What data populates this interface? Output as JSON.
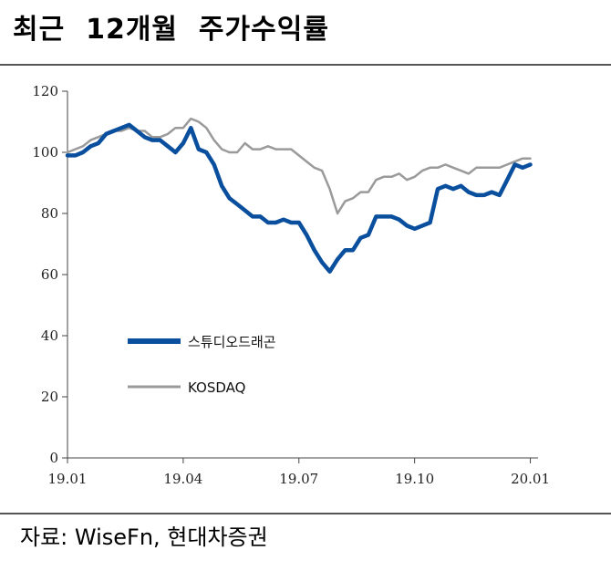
{
  "header": {
    "title": "최근  12개월  주가수익률"
  },
  "footer": {
    "source": "자료: WiseFn, 현대차증권"
  },
  "chart_data": {
    "type": "line",
    "title": "최근  12개월  주가수익률",
    "xlabel": "",
    "ylabel": "",
    "ylim": [
      0,
      120
    ],
    "y_ticks": [
      "0",
      "20",
      "40",
      "60",
      "80",
      "100",
      "120"
    ],
    "x_tick_labels": [
      "19.01",
      "19.04",
      "19.07",
      "19.10",
      "20.01"
    ],
    "x_range_months": [
      0,
      12.2
    ],
    "grid": false,
    "legend_position": "middle-left",
    "series": [
      {
        "name": "스튜디오드래곤",
        "color": "#0a4f9e",
        "x": [
          0,
          0.2,
          0.4,
          0.6,
          0.8,
          1.0,
          1.2,
          1.4,
          1.6,
          1.8,
          2.0,
          2.2,
          2.4,
          2.6,
          2.8,
          3.0,
          3.2,
          3.4,
          3.6,
          3.8,
          4.0,
          4.2,
          4.4,
          4.6,
          4.8,
          5.0,
          5.2,
          5.4,
          5.6,
          5.8,
          6.0,
          6.2,
          6.4,
          6.6,
          6.8,
          7.0,
          7.2,
          7.4,
          7.6,
          7.8,
          8.0,
          8.2,
          8.4,
          8.6,
          8.8,
          9.0,
          9.2,
          9.4,
          9.6,
          9.8,
          10.0,
          10.2,
          10.4,
          10.6,
          10.8,
          11.0,
          11.2,
          11.4,
          11.6,
          11.8,
          12.0
        ],
        "values": [
          99,
          99,
          100,
          102,
          103,
          106,
          107,
          108,
          109,
          107,
          105,
          104,
          104,
          102,
          100,
          103,
          108,
          101,
          100,
          96,
          89,
          85,
          83,
          81,
          79,
          79,
          77,
          77,
          78,
          77,
          77,
          73,
          68,
          64,
          61,
          65,
          68,
          68,
          72,
          73,
          79,
          79,
          79,
          78,
          76,
          75,
          76,
          77,
          88,
          89,
          88,
          89,
          87,
          86,
          86,
          87,
          86,
          91,
          96,
          95,
          96
        ]
      },
      {
        "name": "KOSDAQ",
        "color": "#9a9a9a",
        "x": [
          0,
          0.2,
          0.4,
          0.6,
          0.8,
          1.0,
          1.2,
          1.4,
          1.6,
          1.8,
          2.0,
          2.2,
          2.4,
          2.6,
          2.8,
          3.0,
          3.2,
          3.4,
          3.6,
          3.8,
          4.0,
          4.2,
          4.4,
          4.6,
          4.8,
          5.0,
          5.2,
          5.4,
          5.6,
          5.8,
          6.0,
          6.2,
          6.4,
          6.6,
          6.8,
          7.0,
          7.2,
          7.4,
          7.6,
          7.8,
          8.0,
          8.2,
          8.4,
          8.6,
          8.8,
          9.0,
          9.2,
          9.4,
          9.6,
          9.8,
          10.0,
          10.2,
          10.4,
          10.6,
          10.8,
          11.0,
          11.2,
          11.4,
          11.6,
          11.8,
          12.0
        ],
        "values": [
          100,
          101,
          102,
          104,
          105,
          106,
          107,
          107,
          108,
          107,
          107,
          105,
          105,
          106,
          108,
          108,
          111,
          110,
          108,
          104,
          101,
          100,
          100,
          103,
          101,
          101,
          102,
          101,
          101,
          101,
          99,
          97,
          95,
          94,
          88,
          80,
          84,
          85,
          87,
          87,
          91,
          92,
          92,
          93,
          91,
          92,
          94,
          95,
          95,
          96,
          95,
          94,
          93,
          95,
          95,
          95,
          95,
          96,
          97,
          98,
          98
        ]
      }
    ]
  }
}
